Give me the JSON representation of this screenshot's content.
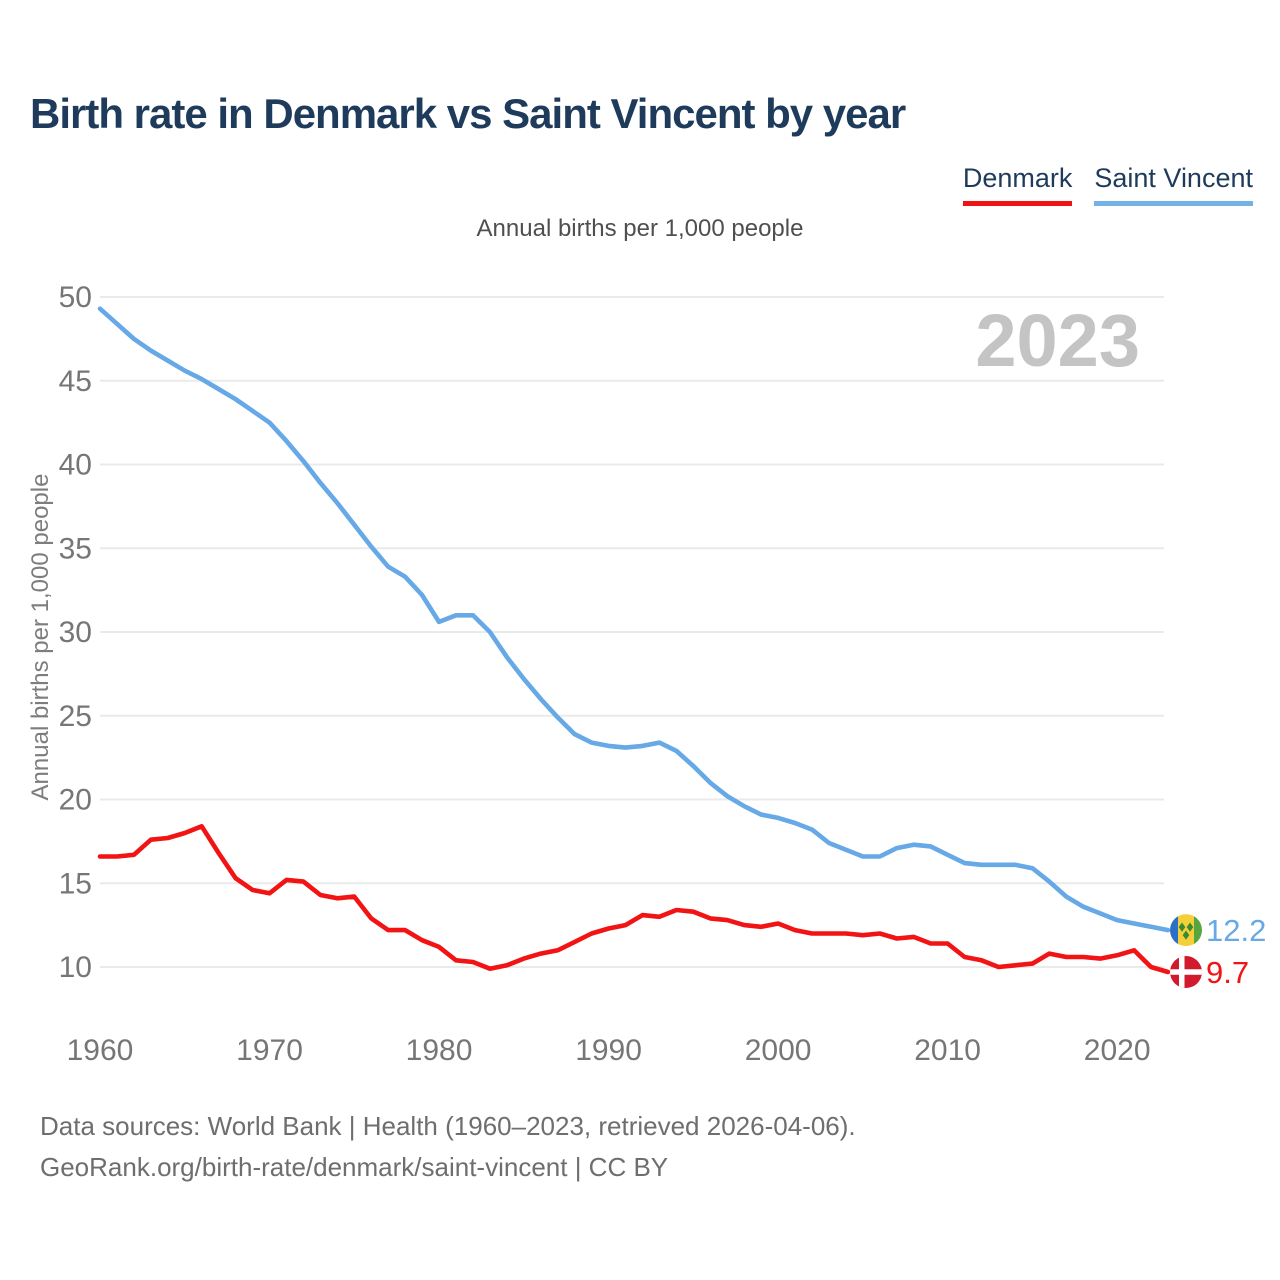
{
  "header": {
    "title": "Birth rate in Denmark vs Saint Vincent by year",
    "subtitle": "Annual births per 1,000 people",
    "legend": [
      {
        "label": "Denmark",
        "color": "#f21414"
      },
      {
        "label": "Saint Vincent",
        "color": "#73b1e7"
      }
    ]
  },
  "watermark": "2023",
  "chart_data": {
    "type": "line",
    "title": "Annual births per 1,000 people",
    "xlabel": "",
    "ylabel": "Annual births per 1,000 people",
    "xlim": [
      1960,
      2023
    ],
    "ylim": [
      10,
      50
    ],
    "yticks": [
      10,
      15,
      20,
      25,
      30,
      35,
      40,
      45,
      50
    ],
    "xticks": [
      1960,
      1970,
      1980,
      1990,
      2000,
      2010,
      2020
    ],
    "grid": true,
    "legend_position": "top-right",
    "x": [
      1960,
      1961,
      1962,
      1963,
      1964,
      1965,
      1966,
      1967,
      1968,
      1969,
      1970,
      1971,
      1972,
      1973,
      1974,
      1975,
      1976,
      1977,
      1978,
      1979,
      1980,
      1981,
      1982,
      1983,
      1984,
      1985,
      1986,
      1987,
      1988,
      1989,
      1990,
      1991,
      1992,
      1993,
      1994,
      1995,
      1996,
      1997,
      1998,
      1999,
      2000,
      2001,
      2002,
      2003,
      2004,
      2005,
      2006,
      2007,
      2008,
      2009,
      2010,
      2011,
      2012,
      2013,
      2014,
      2015,
      2016,
      2017,
      2018,
      2019,
      2020,
      2021,
      2022,
      2023
    ],
    "series": [
      {
        "name": "Saint Vincent",
        "color": "#66a9e6",
        "flag": "saint-vincent",
        "end_label": "12.2",
        "values": [
          49.3,
          48.4,
          47.5,
          46.8,
          46.2,
          45.6,
          45.1,
          44.5,
          43.9,
          43.2,
          42.5,
          41.4,
          40.2,
          38.9,
          37.7,
          36.4,
          35.1,
          33.9,
          33.3,
          32.2,
          30.6,
          31.0,
          31.0,
          30.0,
          28.5,
          27.2,
          26.0,
          24.9,
          23.9,
          23.4,
          23.2,
          23.1,
          23.2,
          23.4,
          22.9,
          22.0,
          21.0,
          20.2,
          19.6,
          19.1,
          18.9,
          18.6,
          18.2,
          17.4,
          17.0,
          16.6,
          16.6,
          17.1,
          17.3,
          17.2,
          16.7,
          16.2,
          16.1,
          16.1,
          16.1,
          15.9,
          15.1,
          14.2,
          13.6,
          13.2,
          12.8,
          12.6,
          12.4,
          12.2
        ]
      },
      {
        "name": "Denmark",
        "color": "#f21414",
        "flag": "denmark",
        "end_label": "9.7",
        "values": [
          16.6,
          16.6,
          16.7,
          17.6,
          17.7,
          18.0,
          18.4,
          16.8,
          15.3,
          14.6,
          14.4,
          15.2,
          15.1,
          14.3,
          14.1,
          14.2,
          12.9,
          12.2,
          12.2,
          11.6,
          11.2,
          10.4,
          10.3,
          9.9,
          10.1,
          10.5,
          10.8,
          11.0,
          11.5,
          12.0,
          12.3,
          12.5,
          13.1,
          13.0,
          13.4,
          13.3,
          12.9,
          12.8,
          12.5,
          12.4,
          12.6,
          12.2,
          12.0,
          12.0,
          12.0,
          11.9,
          12.0,
          11.7,
          11.8,
          11.4,
          11.4,
          10.6,
          10.4,
          10.0,
          10.1,
          10.2,
          10.8,
          10.6,
          10.6,
          10.5,
          10.7,
          11.0,
          10.0,
          9.7
        ]
      }
    ]
  },
  "flag_colors": {
    "saint_vincent_blue": "#2b6fc9",
    "saint_vincent_gold": "#f5cf3a",
    "saint_vincent_green": "#57a53f",
    "saint_vincent_diamond": "#3a8a33",
    "denmark_red": "#d11a2e",
    "denmark_cross": "#ffffff"
  },
  "axis_style": {
    "tick_color": "#767676",
    "grid_color": "#eaeaea",
    "watermark_color": "#c4c4c4"
  },
  "footer": {
    "line1": "Data sources: World Bank | Health (1960–2023, retrieved 2026-04-06).",
    "line2": "GeoRank.org/birth-rate/denmark/saint-vincent | CC BY"
  }
}
